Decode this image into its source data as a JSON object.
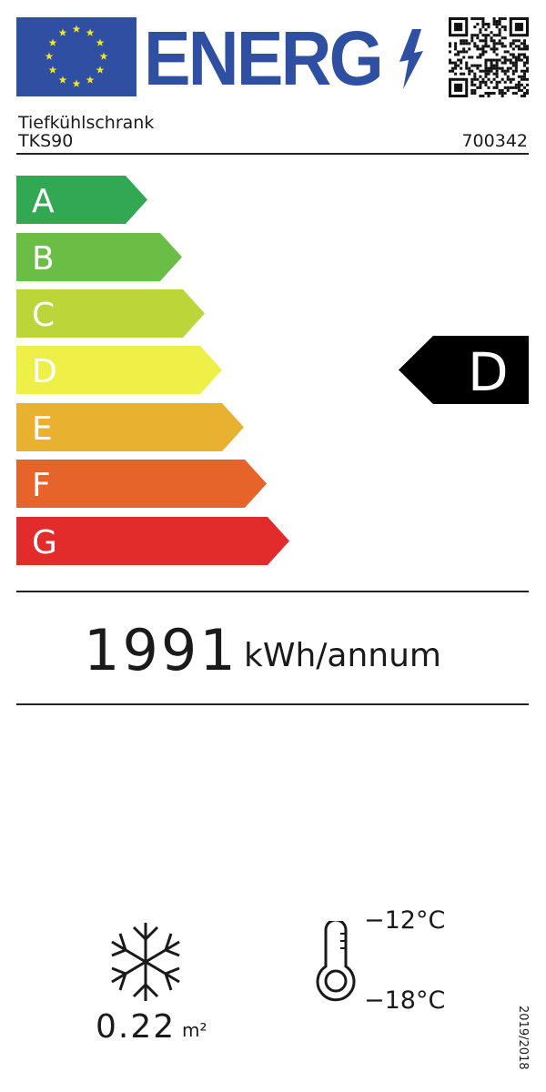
{
  "header": {
    "logo_text": "ENERG",
    "icons": [
      "eu-flag-icon",
      "lightning-icon",
      "qr-code-icon"
    ]
  },
  "product": {
    "type": "Tiefkühlschrank",
    "model": "TKS90",
    "id": "700342"
  },
  "scale": {
    "classes": [
      {
        "letter": "A",
        "color": "#33a852"
      },
      {
        "letter": "B",
        "color": "#6abd45"
      },
      {
        "letter": "C",
        "color": "#bcd63a"
      },
      {
        "letter": "D",
        "color": "#eef048"
      },
      {
        "letter": "E",
        "color": "#e8b130"
      },
      {
        "letter": "F",
        "color": "#e6632a"
      },
      {
        "letter": "G",
        "color": "#e22b2b"
      }
    ],
    "rating": "D"
  },
  "consumption": {
    "value": "1991",
    "unit": "kWh/annum"
  },
  "specs": {
    "area_value": "0.22",
    "area_unit": "m²",
    "temp_high": "−12°C",
    "temp_low": "−18°C"
  },
  "regulation": "2019/2018"
}
